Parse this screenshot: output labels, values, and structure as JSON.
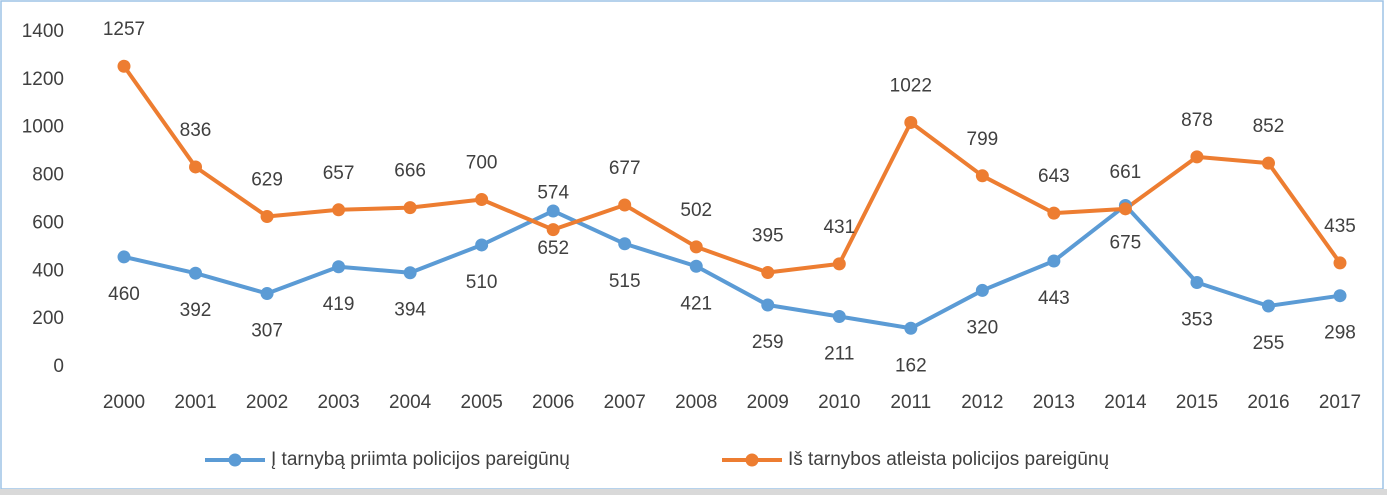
{
  "chart_data": {
    "type": "line",
    "categories": [
      "2000",
      "2001",
      "2002",
      "2003",
      "2004",
      "2005",
      "2006",
      "2007",
      "2008",
      "2009",
      "2010",
      "2011",
      "2012",
      "2013",
      "2014",
      "2015",
      "2016",
      "2017"
    ],
    "series": [
      {
        "name": "Į tarnybą priimta policijos pareigūnų",
        "color": "#5b9bd5",
        "values": [
          460,
          392,
          307,
          419,
          394,
          510,
          652,
          515,
          421,
          259,
          211,
          162,
          320,
          443,
          675,
          353,
          255,
          298
        ]
      },
      {
        "name": "Iš tarnybos atleista policijos pareigūnų",
        "color": "#ed7d31",
        "values": [
          1257,
          836,
          629,
          657,
          666,
          700,
          574,
          677,
          502,
          395,
          431,
          1022,
          799,
          643,
          661,
          878,
          852,
          435
        ]
      }
    ],
    "ylim": [
      0,
      1400
    ],
    "yticks": [
      0,
      200,
      400,
      600,
      800,
      1000,
      1200,
      1400
    ],
    "grid": false,
    "legend": "bottom"
  }
}
